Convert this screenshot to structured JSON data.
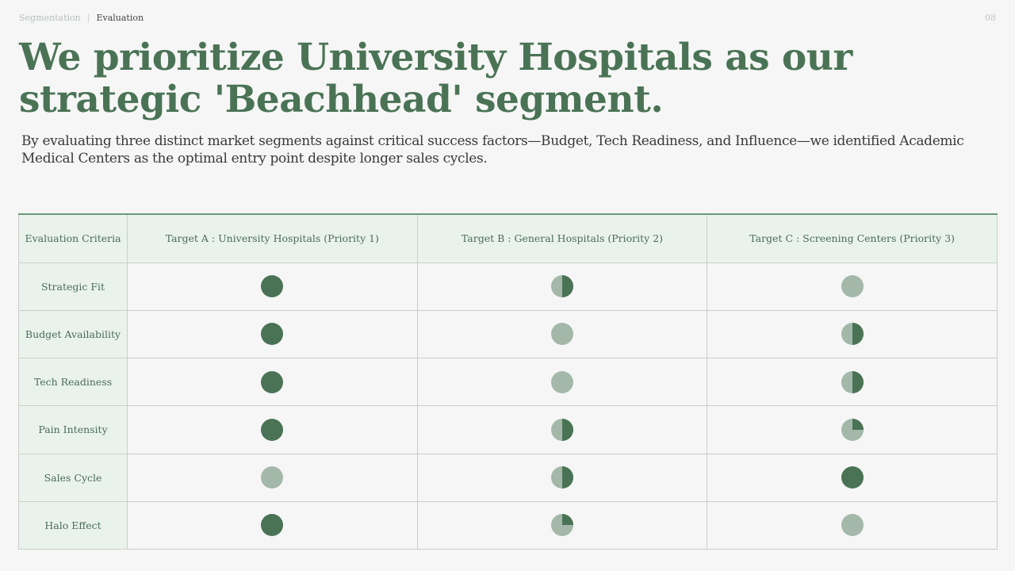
{
  "breadcrumb": {
    "items": [
      "Segmentation",
      "Evaluation"
    ],
    "page": "08"
  },
  "title": "We prioritize University Hospitals as our strategic 'Beachhead' segment.",
  "subtitle": "By evaluating three distinct market segments against critical success factors—Budget, Tech Readiness, and Influence—we identified Academic Medical Centers as the optimal entry point despite longer sales cycles.",
  "colors": {
    "full": "#4a7355",
    "light": "#a4b8aa"
  },
  "table": {
    "headers": [
      "Evaluation Criteria",
      "Target A : University Hospitals (Priority 1)",
      "Target B : General Hospitals (Priority 2)",
      "Target C : Screening Centers (Priority 3)"
    ],
    "rows": [
      {
        "criterion": "Strategic Fit",
        "scores": [
          1,
          0.5,
          0
        ]
      },
      {
        "criterion": "Budget Availability",
        "scores": [
          1,
          0,
          0.5
        ]
      },
      {
        "criterion": "Tech Readiness",
        "scores": [
          1,
          0,
          0.5
        ]
      },
      {
        "criterion": "Pain Intensity",
        "scores": [
          1,
          0.5,
          0.25
        ]
      },
      {
        "criterion": "Sales Cycle",
        "scores": [
          0,
          0.5,
          1
        ]
      },
      {
        "criterion": "Halo Effect",
        "scores": [
          1,
          0.25,
          0
        ]
      }
    ]
  }
}
